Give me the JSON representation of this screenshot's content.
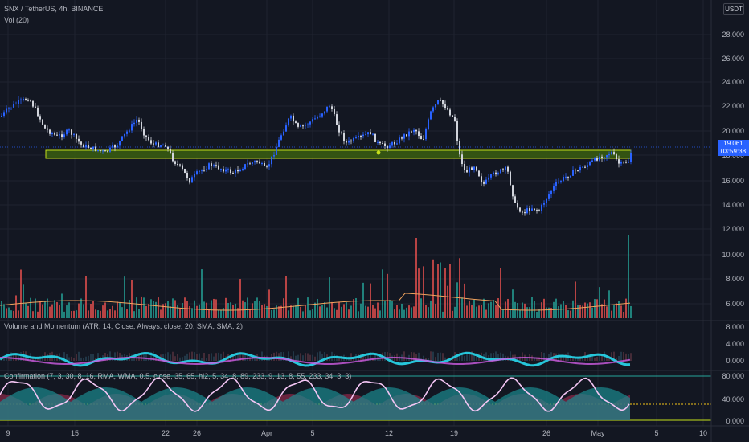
{
  "header": {
    "symbol_line": "SNX / TetherUS, 4h, BINANCE",
    "volume_label": "Vol (20)",
    "currency": "USDT"
  },
  "price_axis": [
    "28.000",
    "26.000",
    "24.000",
    "22.000",
    "20.000",
    "18.000",
    "16.000",
    "14.000",
    "12.000",
    "10.000",
    "8.000",
    "6.000"
  ],
  "last_price": {
    "value": "19.061",
    "countdown": "03:59:38"
  },
  "momentum_pane": {
    "label": "Volume and Momentum (ATR, 14, Close, Always, close, 20, SMA, SMA, 2)",
    "axis": [
      "8.000",
      "4.000",
      "0.000"
    ]
  },
  "confirmation_pane": {
    "label": "Confirmation (7, 3, 30, 8, 16, RMA, WMA, 0.5, close, 35, 65, hl2, 5, 34, 8, 89, 233, 9, 13, 8, 55, 233, 34, 3, 3)",
    "axis": [
      "80.000",
      "40.000",
      "0.000"
    ]
  },
  "date_axis": [
    "9",
    "15",
    "22",
    "26",
    "Apr",
    "5",
    "12",
    "19",
    "26",
    "May",
    "5",
    "10"
  ],
  "colors": {
    "bg": "#131722",
    "up": "#26a69a",
    "down": "#ef5350",
    "zone": "#3a5e0f",
    "zone_border": "#c6e01b",
    "accent": "#2962ff"
  }
}
